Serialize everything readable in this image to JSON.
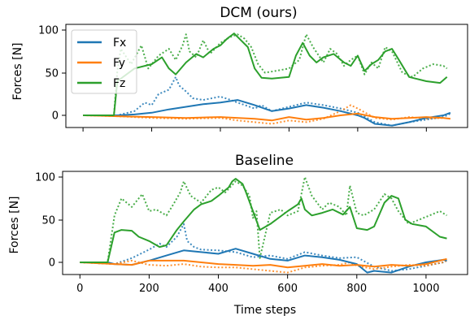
{
  "figure": {
    "xlabel": "Time steps",
    "x_tick_labels": [
      "0",
      "200",
      "400",
      "600",
      "800",
      "1000"
    ]
  },
  "colors": {
    "Fx": "#1f77b4",
    "Fy": "#ff7f0e",
    "Fz": "#2ca02c"
  },
  "chart_data": [
    {
      "type": "line",
      "title": "DCM (ours)",
      "ylabel": "Forces [N]",
      "xlim": [
        -50,
        1120
      ],
      "ylim": [
        -15,
        105
      ],
      "y_tick_labels": [
        "0",
        "50",
        "100"
      ],
      "legend": {
        "placement": "top-left",
        "entries": [
          "Fx",
          "Fy",
          "Fz"
        ]
      },
      "series": [
        {
          "name": "Fx",
          "style": "solid",
          "x": [
            0,
            100,
            150,
            200,
            250,
            300,
            350,
            400,
            450,
            500,
            550,
            600,
            650,
            700,
            750,
            800,
            820,
            850,
            900,
            950,
            1000,
            1050,
            1070
          ],
          "values": [
            0,
            0,
            1,
            3,
            7,
            10,
            13,
            15,
            18,
            12,
            5,
            8,
            12,
            9,
            5,
            0,
            -3,
            -10,
            -12,
            -8,
            -3,
            0,
            3
          ]
        },
        {
          "name": "Fx",
          "style": "dotted",
          "x": [
            0,
            100,
            150,
            180,
            200,
            220,
            250,
            270,
            280,
            300,
            320,
            350,
            400,
            430,
            450,
            500,
            520,
            550,
            600,
            650,
            700,
            750,
            800,
            850,
            900,
            950,
            1000,
            1050,
            1070
          ],
          "values": [
            0,
            0,
            5,
            15,
            12,
            25,
            30,
            45,
            35,
            28,
            20,
            18,
            22,
            18,
            15,
            8,
            12,
            5,
            10,
            15,
            12,
            8,
            3,
            -8,
            -12,
            -8,
            -5,
            -2,
            2
          ]
        },
        {
          "name": "Fy",
          "style": "solid",
          "x": [
            0,
            100,
            200,
            300,
            400,
            500,
            550,
            600,
            650,
            700,
            750,
            800,
            850,
            900,
            950,
            1000,
            1050,
            1070
          ],
          "values": [
            0,
            -1,
            -2,
            -3,
            -2,
            -4,
            -6,
            -2,
            -5,
            -3,
            0,
            2,
            -2,
            -4,
            -3,
            -2,
            -3,
            -4
          ]
        },
        {
          "name": "Fy",
          "style": "dotted",
          "x": [
            0,
            100,
            200,
            300,
            400,
            450,
            500,
            550,
            600,
            650,
            700,
            750,
            780,
            800,
            850,
            900,
            950,
            1000,
            1050,
            1070
          ],
          "values": [
            0,
            -1,
            -3,
            -4,
            -3,
            -6,
            -8,
            -10,
            -6,
            -8,
            -4,
            5,
            12,
            8,
            -3,
            -5,
            -2,
            -4,
            -3,
            -4
          ]
        },
        {
          "name": "Fz",
          "style": "solid",
          "x": [
            0,
            90,
            100,
            150,
            200,
            230,
            250,
            270,
            300,
            330,
            350,
            380,
            400,
            420,
            440,
            460,
            480,
            500,
            520,
            550,
            600,
            620,
            640,
            660,
            680,
            700,
            730,
            760,
            780,
            800,
            820,
            840,
            860,
            880,
            900,
            920,
            950,
            1000,
            1040,
            1060
          ],
          "values": [
            0,
            0,
            40,
            55,
            60,
            68,
            55,
            48,
            62,
            72,
            68,
            78,
            82,
            90,
            96,
            88,
            80,
            55,
            44,
            43,
            45,
            70,
            85,
            70,
            62,
            68,
            72,
            62,
            58,
            70,
            52,
            60,
            65,
            75,
            78,
            65,
            45,
            40,
            38,
            45
          ]
        },
        {
          "name": "Fz",
          "style": "dotted",
          "x": [
            0,
            90,
            100,
            110,
            140,
            170,
            190,
            200,
            220,
            250,
            270,
            290,
            300,
            310,
            330,
            350,
            370,
            400,
            430,
            450,
            470,
            490,
            510,
            530,
            560,
            600,
            630,
            650,
            670,
            700,
            720,
            740,
            760,
            780,
            800,
            820,
            840,
            860,
            880,
            900,
            930,
            960,
            990,
            1020,
            1050,
            1060
          ],
          "values": [
            0,
            0,
            52,
            78,
            60,
            82,
            55,
            60,
            70,
            78,
            65,
            82,
            95,
            75,
            68,
            88,
            72,
            85,
            92,
            95,
            90,
            80,
            60,
            50,
            52,
            55,
            65,
            95,
            80,
            62,
            78,
            72,
            58,
            65,
            70,
            48,
            62,
            55,
            80,
            75,
            50,
            45,
            55,
            60,
            58,
            55
          ]
        }
      ]
    },
    {
      "type": "line",
      "title": "Baseline",
      "ylabel": "Forces [N]",
      "xlabel": "Time steps",
      "xlim": [
        -50,
        1120
      ],
      "ylim": [
        -15,
        105
      ],
      "y_tick_labels": [
        "0",
        "50",
        "100"
      ],
      "series": [
        {
          "name": "Fx",
          "style": "solid",
          "x": [
            0,
            80,
            100,
            150,
            200,
            250,
            300,
            350,
            400,
            450,
            500,
            550,
            600,
            650,
            700,
            750,
            800,
            830,
            850,
            900,
            950,
            1000,
            1050,
            1060
          ],
          "values": [
            0,
            0,
            -2,
            -3,
            2,
            8,
            14,
            12,
            10,
            16,
            10,
            4,
            2,
            8,
            6,
            3,
            -2,
            -12,
            -10,
            -12,
            -5,
            0,
            3,
            2
          ]
        },
        {
          "name": "Fx",
          "style": "dotted",
          "x": [
            0,
            100,
            150,
            200,
            230,
            250,
            280,
            300,
            310,
            330,
            350,
            400,
            450,
            500,
            550,
            600,
            650,
            700,
            750,
            800,
            850,
            900,
            950,
            1000,
            1050,
            1060
          ],
          "values": [
            0,
            -2,
            5,
            15,
            22,
            18,
            30,
            45,
            25,
            18,
            15,
            14,
            12,
            6,
            8,
            4,
            12,
            8,
            5,
            6,
            -5,
            -10,
            -8,
            -4,
            0,
            2
          ]
        },
        {
          "name": "Fy",
          "style": "solid",
          "x": [
            0,
            100,
            150,
            200,
            300,
            400,
            450,
            500,
            550,
            600,
            650,
            700,
            750,
            800,
            850,
            900,
            950,
            1000,
            1050,
            1060
          ],
          "values": [
            0,
            -2,
            -3,
            2,
            2,
            -2,
            -3,
            -4,
            -3,
            -6,
            -4,
            -2,
            -4,
            -3,
            -5,
            -3,
            -4,
            -2,
            3,
            4
          ]
        },
        {
          "name": "Fy",
          "style": "dotted",
          "x": [
            0,
            100,
            150,
            200,
            250,
            300,
            350,
            400,
            450,
            500,
            550,
            600,
            650,
            700,
            750,
            780,
            800,
            850,
            900,
            950,
            1000,
            1050,
            1060
          ],
          "values": [
            0,
            -2,
            2,
            -3,
            -4,
            -2,
            -5,
            -6,
            -6,
            -8,
            -10,
            -12,
            -6,
            -4,
            -3,
            0,
            -4,
            -8,
            -5,
            -3,
            -4,
            0,
            2
          ]
        },
        {
          "name": "Fz",
          "style": "solid",
          "x": [
            0,
            80,
            100,
            120,
            150,
            170,
            200,
            230,
            250,
            280,
            300,
            330,
            350,
            380,
            400,
            430,
            440,
            450,
            470,
            480,
            500,
            520,
            550,
            600,
            630,
            640,
            650,
            670,
            700,
            730,
            760,
            780,
            800,
            830,
            850,
            880,
            900,
            920,
            940,
            960,
            1000,
            1040,
            1060
          ],
          "values": [
            0,
            0,
            35,
            38,
            37,
            30,
            25,
            18,
            20,
            38,
            48,
            62,
            68,
            72,
            78,
            88,
            95,
            98,
            92,
            82,
            60,
            38,
            45,
            60,
            68,
            75,
            62,
            55,
            58,
            62,
            56,
            65,
            40,
            38,
            42,
            70,
            78,
            75,
            50,
            45,
            42,
            30,
            28
          ]
        },
        {
          "name": "Fz",
          "style": "dotted",
          "x": [
            0,
            80,
            100,
            120,
            150,
            180,
            200,
            220,
            250,
            270,
            290,
            300,
            320,
            350,
            380,
            400,
            420,
            450,
            470,
            490,
            500,
            510,
            520,
            550,
            580,
            600,
            630,
            650,
            670,
            700,
            720,
            750,
            770,
            780,
            800,
            820,
            850,
            880,
            900,
            920,
            950,
            980,
            1010,
            1040,
            1060
          ],
          "values": [
            0,
            0,
            55,
            75,
            65,
            80,
            60,
            62,
            55,
            68,
            82,
            95,
            78,
            70,
            85,
            88,
            82,
            95,
            90,
            78,
            52,
            60,
            5,
            58,
            62,
            55,
            60,
            100,
            78,
            62,
            70,
            65,
            55,
            90,
            58,
            55,
            62,
            80,
            75,
            60,
            45,
            50,
            55,
            60,
            55
          ]
        }
      ]
    }
  ]
}
